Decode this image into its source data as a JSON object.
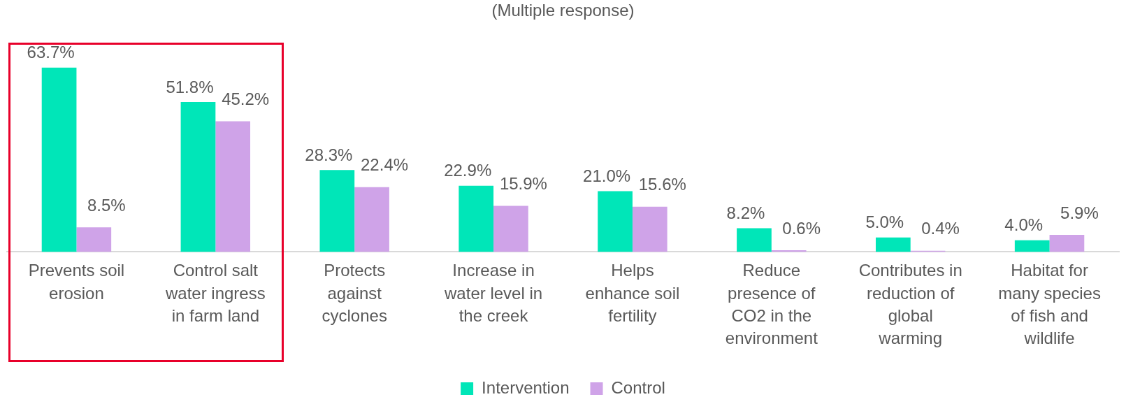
{
  "chart_data": {
    "type": "bar",
    "subtitle": "(Multiple response)",
    "categories": [
      "Prevents soil erosion",
      "Control salt water ingress in farm land",
      "Protects against cyclones",
      "Increase in water level in the creek",
      "Helps enhance soil fertility",
      "Reduce presence of CO2 in the environment",
      "Contributes in reduction of global warming",
      "Habitat for many species of fish and wildlife"
    ],
    "series": [
      {
        "name": "Intervention",
        "color": "#00e6b8",
        "values": [
          63.7,
          51.8,
          28.3,
          22.9,
          21.0,
          8.2,
          5.0,
          4.0
        ],
        "value_labels": [
          "63.7%",
          "51.8%",
          "28.3%",
          "22.9%",
          "21.0%",
          "8.2%",
          "5.0%",
          "4.0%"
        ]
      },
      {
        "name": "Control",
        "color": "#cfa3e8",
        "values": [
          8.5,
          45.2,
          22.4,
          15.9,
          15.6,
          0.6,
          0.4,
          5.9
        ],
        "value_labels": [
          "8.5%",
          "45.2%",
          "22.4%",
          "15.9%",
          "15.6%",
          "0.6%",
          "0.4%",
          "5.9%"
        ]
      }
    ],
    "legend": "bottom",
    "grid": false
  }
}
